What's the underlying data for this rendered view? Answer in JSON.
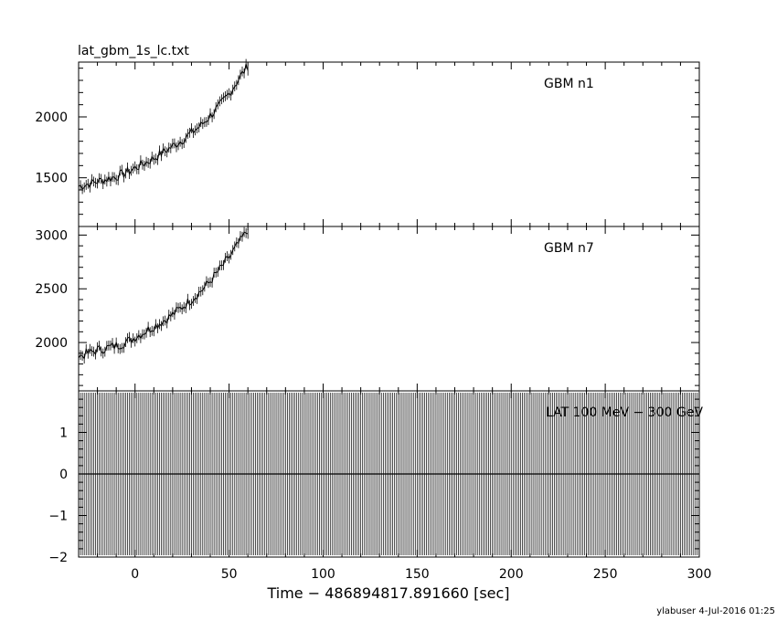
{
  "chart_data": {
    "type": "line",
    "file_title": "lat_gbm_1s_lc.txt",
    "xlabel": "Time − 486894817.891660 [sec]",
    "xlim": [
      -30,
      300
    ],
    "x_ticks": [
      0,
      50,
      100,
      150,
      200,
      250,
      300
    ],
    "footer": "ylabuser  4-Jul-2016 01:25",
    "panels": [
      {
        "name": "GBM n1",
        "ylim": [
          1100,
          2450
        ],
        "y_ticks": [
          1500,
          2000
        ],
        "series": [
          {
            "x": [
              -30,
              -25,
              -20,
              -15,
              -10,
              -5,
              0,
              5,
              10,
              15,
              20,
              25,
              30,
              35,
              40,
              45,
              50,
              55,
              60
            ],
            "y": [
              1430,
              1450,
              1470,
              1490,
              1510,
              1540,
              1580,
              1620,
              1660,
              1710,
              1760,
              1810,
              1870,
              1930,
              2010,
              2090,
              2190,
              2310,
              2420
            ]
          }
        ]
      },
      {
        "name": "GBM n7",
        "ylim": [
          1550,
          3080
        ],
        "y_ticks": [
          2000,
          2500,
          3000
        ],
        "series": [
          {
            "x": [
              -30,
              -25,
              -20,
              -15,
              -10,
              -5,
              0,
              5,
              10,
              15,
              20,
              25,
              30,
              35,
              40,
              45,
              50,
              55,
              60
            ],
            "y": [
              1870,
              1900,
              1930,
              1950,
              1970,
              2000,
              2050,
              2100,
              2150,
              2200,
              2260,
              2330,
              2400,
              2480,
              2570,
              2680,
              2790,
              2920,
              3050
            ]
          }
        ]
      },
      {
        "name": "LAT 100 MeV − 300 GeV",
        "ylim": [
          -2,
          2
        ],
        "y_ticks": [
          -2,
          -1,
          0,
          1
        ],
        "series": [
          {
            "x": [
              -30,
              300
            ],
            "y": [
              0,
              0
            ]
          }
        ]
      }
    ]
  }
}
